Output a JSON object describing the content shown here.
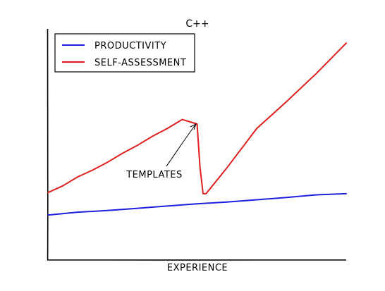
{
  "chart_data": {
    "type": "line",
    "title": "C++",
    "xlabel": "EXPERIENCE",
    "ylabel": "",
    "xlim": [
      0,
      100
    ],
    "ylim": [
      0,
      100
    ],
    "grid": false,
    "legend": "top-left",
    "series": [
      {
        "name": "PRODUCTIVITY",
        "color": "#1f1fdd",
        "x": [
          0,
          10,
          20,
          30,
          40,
          50,
          60,
          70,
          80,
          90,
          100
        ],
        "y": [
          20,
          21.3,
          22,
          23,
          24,
          25,
          25.8,
          26.8,
          27.8,
          29,
          29.5
        ]
      },
      {
        "name": "SELF-ASSESSMENT",
        "color": "#dd1f1f",
        "x": [
          0,
          5,
          10,
          15,
          20,
          25,
          30,
          35,
          40,
          45,
          50,
          51,
          52,
          53,
          60,
          70,
          80,
          90,
          100
        ],
        "y": [
          30,
          33,
          37,
          40,
          43.5,
          47.5,
          51,
          55,
          58.5,
          62.5,
          60.5,
          41,
          29.5,
          29.5,
          41,
          58.5,
          70.5,
          83,
          96.5
        ]
      }
    ],
    "annotations": [
      {
        "text": "TEMPLATES",
        "x": 50,
        "y": 60.5
      }
    ]
  }
}
